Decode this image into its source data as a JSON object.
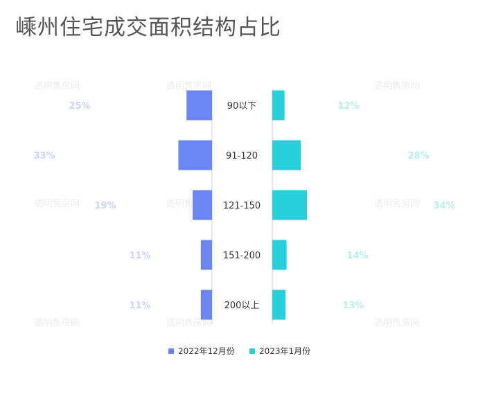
{
  "chart_data": {
    "type": "bar",
    "title": "嵊州住宅成交面积结构占比",
    "categories": [
      "90以下",
      "91-120",
      "121-150",
      "151-200",
      "200以上"
    ],
    "series": [
      {
        "name": "2022年12月份",
        "values": [
          25,
          33,
          19,
          11,
          11
        ],
        "labels": [
          "25%",
          "33%",
          "19%",
          "11%",
          "11%"
        ],
        "color": "#6b85f2"
      },
      {
        "name": "2023年1月份",
        "values": [
          12,
          28,
          34,
          14,
          13
        ],
        "labels": [
          "12%",
          "28%",
          "34%",
          "14%",
          "13%"
        ],
        "color": "#26cfd9"
      }
    ],
    "xlim": [
      0,
      34
    ],
    "legend": "bottom-center",
    "grid": false
  },
  "watermark": "透明售房网"
}
